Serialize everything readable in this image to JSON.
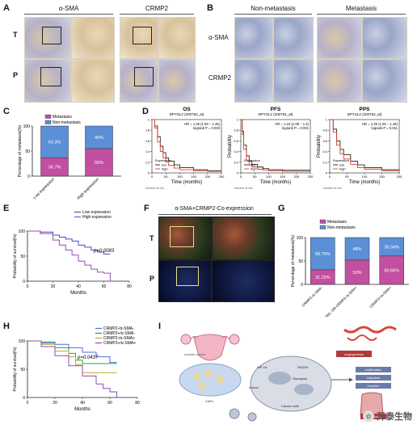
{
  "panels": {
    "A": {
      "letter": "A",
      "col_titles": [
        "α-SMA",
        "CRMP2"
      ],
      "row_labels": [
        "T",
        "P"
      ]
    },
    "B": {
      "letter": "B",
      "col_titles": [
        "Non-metastasis",
        "Metastasis"
      ],
      "row_labels": [
        "α-SMA",
        "CRMP2"
      ]
    },
    "C": {
      "letter": "C"
    },
    "D": {
      "letter": "D",
      "plots": [
        {
          "title": "OS",
          "probe": "DPYSL2 (200762_at)",
          "hr": "HR = 1.25 (1.08 − 1.45)",
          "p": "logrank P = 0.003"
        },
        {
          "title": "PFS",
          "probe": "DPYSL2 (200762_at)",
          "hr": "HR = 1.24 (1.09 − 1.4)",
          "p": "logrank P = 0.001"
        },
        {
          "title": "PPS",
          "probe": "DPYSL2 (200762_at)",
          "hr": "HR = 1.25 (1.05 − 1.48)",
          "p": "logrank P = 0.011"
        }
      ],
      "ylabel": "Probability",
      "xlabel": "Time (months)",
      "legend_title": "Expression",
      "legend_low": "low",
      "legend_high": "high",
      "number_at_risk": "Number at risk"
    },
    "E": {
      "letter": "E",
      "p": "p=0.0083",
      "legend": [
        "Low expression",
        "High expression"
      ],
      "ylabel": "Probability of survival(%)",
      "xlabel": "Months"
    },
    "F": {
      "letter": "F",
      "title": "α-SMA+CRMP2-Co-expression",
      "row_labels": [
        "T",
        "P"
      ]
    },
    "G": {
      "letter": "G"
    },
    "H": {
      "letter": "H",
      "p": "p=0.0437",
      "legend": [
        "CRMP2-/α-SMA-",
        "CRMP2+/α-SMA-",
        "CRMP2-/α-SMA+",
        "CRMP2+/α-SMA+"
      ],
      "ylabel": "Probability of survival(%)",
      "xlabel": "Months"
    },
    "I": {
      "letter": "I",
      "labels": {
        "ovarian": "ovarian cancer",
        "caf": "CAFs",
        "hif": "HIF-1α",
        "vegfa": "VEGFA",
        "glycolysis": "Glycolysis",
        "cancer_cells": "Cancer cells",
        "angiogenesis": "angiogenesis",
        "proliferation": "proliferation",
        "migration": "migration",
        "invasion": "invasion",
        "metastasis": "metastasis"
      }
    }
  },
  "watermark": "开泰生物",
  "colors": {
    "metastasis": "#c24fa0",
    "non_metastasis": "#5b8fd6",
    "low": "#4a4fb8",
    "high": "#a048b6",
    "h1": "#4b6fd6",
    "h2": "#2aa04a",
    "h3": "#c9a530",
    "h4": "#8a4fb8",
    "km_low": "#222222",
    "km_high": "#e0402a"
  },
  "chart_data": [
    {
      "type": "bar",
      "panel": "C",
      "ylabel": "Percentage of metastasis(%)",
      "categories": [
        "Low expression",
        "High expression"
      ],
      "series": [
        {
          "name": "Metastasis",
          "values": [
            36.7,
            55
          ],
          "labels": [
            "36.7%",
            "55%"
          ]
        },
        {
          "name": "Non-metastasis",
          "values": [
            63.3,
            45
          ],
          "labels": [
            "63.3%",
            "45%"
          ]
        }
      ],
      "stacked": true,
      "ylim": [
        0,
        100
      ],
      "yticks": [
        0,
        50,
        100
      ],
      "legend": "top"
    },
    {
      "type": "line",
      "panel": "D-OS",
      "ylim": [
        0,
        1
      ],
      "xlim": [
        0,
        250
      ],
      "xticks": [
        0,
        50,
        100,
        150,
        200,
        250
      ],
      "yticks": [
        0,
        0.2,
        0.4,
        0.6,
        0.8,
        1.0
      ],
      "series": [
        {
          "name": "low",
          "x": [
            0,
            10,
            20,
            30,
            40,
            50,
            60,
            80,
            100,
            150,
            200,
            250
          ],
          "y": [
            1,
            0.88,
            0.68,
            0.5,
            0.38,
            0.28,
            0.22,
            0.15,
            0.1,
            0.06,
            0.04,
            0.04
          ]
        },
        {
          "name": "high",
          "x": [
            0,
            10,
            20,
            30,
            40,
            50,
            60,
            80,
            100,
            150,
            200,
            250
          ],
          "y": [
            1,
            0.84,
            0.58,
            0.4,
            0.28,
            0.2,
            0.14,
            0.09,
            0.06,
            0.04,
            0.03,
            0.03
          ]
        }
      ]
    },
    {
      "type": "line",
      "panel": "D-PFS",
      "ylim": [
        0,
        1
      ],
      "xlim": [
        0,
        250
      ],
      "xticks": [
        0,
        50,
        100,
        150,
        200,
        250
      ],
      "yticks": [
        0,
        0.2,
        0.4,
        0.6,
        0.8,
        1.0
      ],
      "series": [
        {
          "name": "low",
          "x": [
            0,
            5,
            10,
            20,
            30,
            40,
            60,
            80,
            100,
            150,
            250
          ],
          "y": [
            1,
            0.78,
            0.52,
            0.32,
            0.22,
            0.16,
            0.11,
            0.08,
            0.06,
            0.05,
            0.05
          ]
        },
        {
          "name": "high",
          "x": [
            0,
            5,
            10,
            20,
            30,
            40,
            60,
            80,
            100,
            150,
            250
          ],
          "y": [
            1,
            0.72,
            0.44,
            0.24,
            0.15,
            0.11,
            0.07,
            0.05,
            0.04,
            0.03,
            0.03
          ]
        }
      ]
    },
    {
      "type": "line",
      "panel": "D-PPS",
      "ylim": [
        0,
        1
      ],
      "xlim": [
        0,
        200
      ],
      "xticks": [
        0,
        50,
        100,
        150,
        200
      ],
      "yticks": [
        0,
        0.2,
        0.4,
        0.6,
        0.8,
        1.0
      ],
      "series": [
        {
          "name": "low",
          "x": [
            0,
            10,
            20,
            30,
            40,
            60,
            80,
            100,
            150,
            200
          ],
          "y": [
            1,
            0.82,
            0.6,
            0.44,
            0.34,
            0.22,
            0.15,
            0.1,
            0.06,
            0.05
          ]
        },
        {
          "name": "high",
          "x": [
            0,
            10,
            20,
            30,
            40,
            60,
            80,
            100,
            150,
            200
          ],
          "y": [
            1,
            0.76,
            0.52,
            0.36,
            0.26,
            0.16,
            0.1,
            0.07,
            0.04,
            0.03
          ]
        }
      ]
    },
    {
      "type": "line",
      "panel": "E",
      "xlim": [
        0,
        80
      ],
      "ylim": [
        0,
        100
      ],
      "xticks": [
        0,
        20,
        40,
        60,
        80
      ],
      "yticks": [
        0,
        50,
        100
      ],
      "series": [
        {
          "name": "Low expression",
          "x": [
            0,
            10,
            20,
            25,
            30,
            35,
            40,
            45,
            50,
            55,
            60,
            65
          ],
          "y": [
            100,
            98,
            92,
            88,
            84,
            80,
            72,
            68,
            62,
            58,
            54,
            54
          ]
        },
        {
          "name": "High expression",
          "x": [
            0,
            10,
            20,
            25,
            30,
            35,
            40,
            45,
            50,
            55,
            60,
            65
          ],
          "y": [
            100,
            95,
            82,
            72,
            62,
            52,
            40,
            32,
            24,
            18,
            16,
            0
          ]
        }
      ]
    },
    {
      "type": "bar",
      "panel": "G",
      "ylabel": "Percentage of metastasis(%)",
      "categories": [
        "CRMP2-/α-SMA-",
        "CRMP2+/α-SMA- OR CRMP2-/α-SMA+",
        "CRMP2+/α-SMA+"
      ],
      "series": [
        {
          "name": "Metastasis",
          "values": [
            31.25,
            52,
            60.66
          ],
          "labels": [
            "31.25%",
            "52%",
            "60.66%"
          ]
        },
        {
          "name": "Non-metastasis",
          "values": [
            68.75,
            48,
            39.34
          ],
          "labels": [
            "68.75%",
            "48%",
            "39.34%"
          ]
        }
      ],
      "stacked": true,
      "ylim": [
        0,
        100
      ],
      "yticks": [
        0,
        50,
        100
      ],
      "legend": "top"
    },
    {
      "type": "line",
      "panel": "H",
      "xlim": [
        0,
        80
      ],
      "ylim": [
        0,
        100
      ],
      "xticks": [
        0,
        20,
        40,
        60,
        80
      ],
      "yticks": [
        0,
        50,
        100
      ],
      "series": [
        {
          "name": "CRMP2-/α-SMA-",
          "x": [
            0,
            10,
            20,
            30,
            40,
            50,
            60,
            65
          ],
          "y": [
            100,
            98,
            94,
            88,
            80,
            72,
            62,
            62
          ]
        },
        {
          "name": "CRMP2+/α-SMA-",
          "x": [
            0,
            10,
            20,
            30,
            35,
            40,
            50,
            60,
            65
          ],
          "y": [
            100,
            96,
            88,
            78,
            66,
            60,
            60,
            60,
            60
          ]
        },
        {
          "name": "CRMP2-/α-SMA+",
          "x": [
            0,
            10,
            20,
            30,
            35,
            40,
            50,
            60,
            65
          ],
          "y": [
            100,
            94,
            82,
            72,
            58,
            44,
            44,
            44,
            44
          ]
        },
        {
          "name": "CRMP2+/α-SMA+",
          "x": [
            0,
            10,
            20,
            30,
            40,
            50,
            55,
            60,
            65
          ],
          "y": [
            100,
            90,
            74,
            56,
            38,
            24,
            16,
            10,
            0
          ]
        }
      ]
    }
  ]
}
